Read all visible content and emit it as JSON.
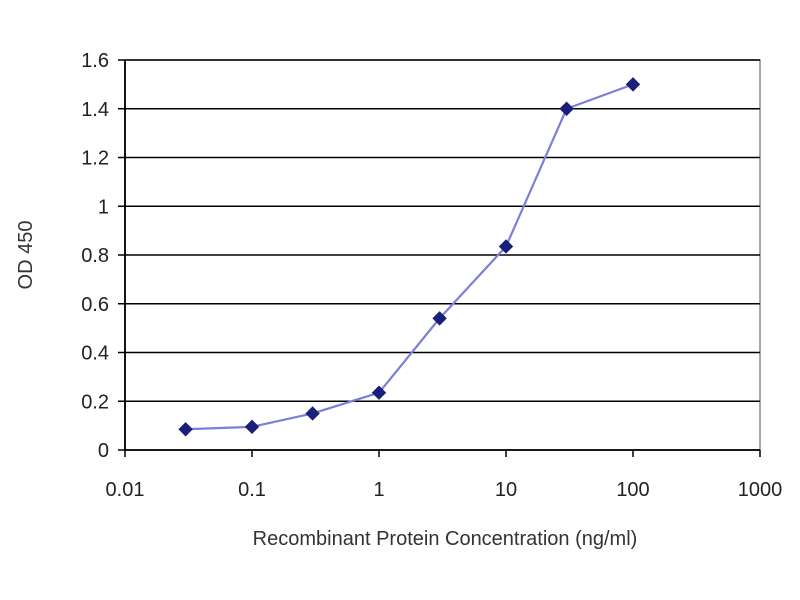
{
  "chart_data": {
    "type": "line",
    "title": "",
    "xlabel": "Recombinant Protein Concentration (ng/ml)",
    "ylabel": "OD 450",
    "xscale": "log",
    "xlim": [
      0.01,
      1000
    ],
    "ylim": [
      0,
      1.6
    ],
    "xticks": [
      "0.01",
      "0.1",
      "1",
      "10",
      "100",
      "1000"
    ],
    "yticks": [
      "0",
      "0.2",
      "0.4",
      "0.6",
      "0.8",
      "1",
      "1.2",
      "1.4",
      "1.6"
    ],
    "grid": "horizontal",
    "legend": "none",
    "series": [
      {
        "x": [
          0.03,
          0.1,
          0.3,
          1,
          3,
          10,
          30,
          100
        ],
        "y": [
          0.085,
          0.095,
          0.15,
          0.235,
          0.54,
          0.835,
          1.4,
          1.5
        ]
      }
    ],
    "colors": {
      "line": "#7b7fd6",
      "marker": "#1a1f7a",
      "grid": "#000000",
      "plot_border": "#8a8a8a"
    }
  }
}
